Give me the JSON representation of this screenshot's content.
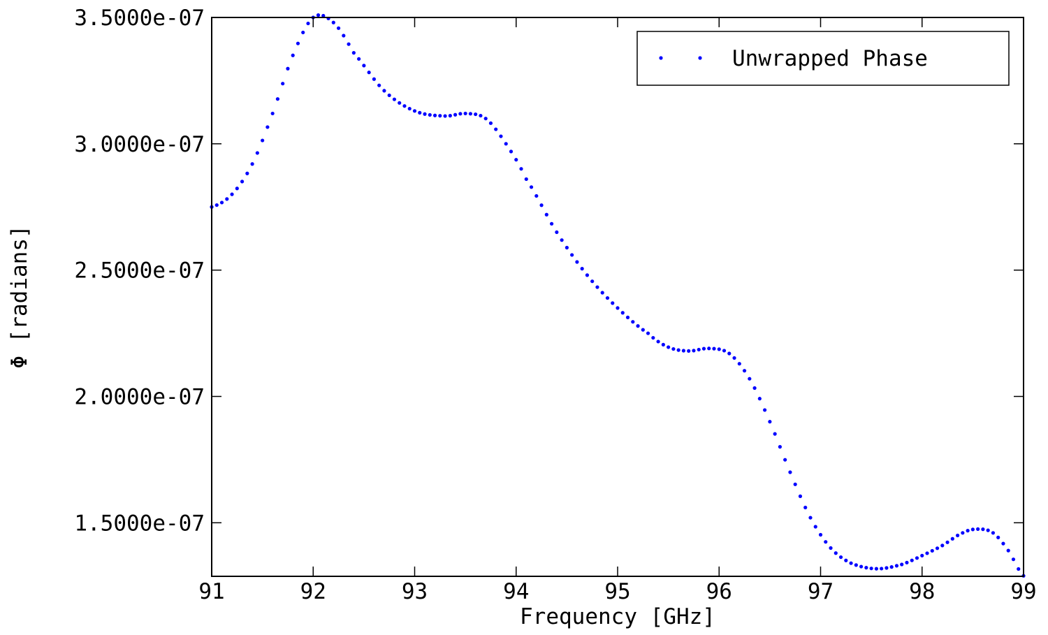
{
  "chart_data": {
    "type": "scatter",
    "title": "",
    "xlabel": "Frequency [GHz]",
    "ylabel": "Φ [radians]",
    "xlim": [
      91,
      99
    ],
    "ylim": [
      1.288e-07,
      3.5e-07
    ],
    "xticks": [
      91,
      92,
      93,
      94,
      95,
      96,
      97,
      98,
      99
    ],
    "xtick_labels": [
      "91",
      "92",
      "93",
      "94",
      "95",
      "96",
      "97",
      "98",
      "99"
    ],
    "yticks": [
      1.5e-07,
      2e-07,
      2.5e-07,
      3e-07,
      3.5e-07
    ],
    "ytick_labels": [
      "1.5000e-07",
      "2.0000e-07",
      "2.5000e-07",
      "3.0000e-07",
      "3.5000e-07"
    ],
    "grid": false,
    "legend_position": "top-right",
    "series": [
      {
        "name": "Unwrapped Phase",
        "color": "#0000ff",
        "marker": "dot",
        "n_points": 161,
        "key_points": [
          [
            91.0,
            2.75e-07
          ],
          [
            91.2,
            2.8e-07
          ],
          [
            91.4,
            2.92e-07
          ],
          [
            91.6,
            3.12e-07
          ],
          [
            91.8,
            3.35e-07
          ],
          [
            92.0,
            3.5e-07
          ],
          [
            92.2,
            3.48e-07
          ],
          [
            92.4,
            3.36e-07
          ],
          [
            92.7,
            3.21e-07
          ],
          [
            93.0,
            3.13e-07
          ],
          [
            93.3,
            3.11e-07
          ],
          [
            93.5,
            3.12e-07
          ],
          [
            93.7,
            3.1e-07
          ],
          [
            93.9,
            3e-07
          ],
          [
            94.1,
            2.86e-07
          ],
          [
            94.4,
            2.65e-07
          ],
          [
            94.7,
            2.48e-07
          ],
          [
            95.0,
            2.35e-07
          ],
          [
            95.3,
            2.25e-07
          ],
          [
            95.5,
            2.195e-07
          ],
          [
            95.7,
            2.18e-07
          ],
          [
            95.9,
            2.19e-07
          ],
          [
            96.1,
            2.17e-07
          ],
          [
            96.3,
            2.07e-07
          ],
          [
            96.5,
            1.9e-07
          ],
          [
            96.7,
            1.7e-07
          ],
          [
            96.9,
            1.52e-07
          ],
          [
            97.1,
            1.4e-07
          ],
          [
            97.3,
            1.34e-07
          ],
          [
            97.55,
            1.318e-07
          ],
          [
            97.8,
            1.335e-07
          ],
          [
            98.0,
            1.37e-07
          ],
          [
            98.2,
            1.41e-07
          ],
          [
            98.4,
            1.46e-07
          ],
          [
            98.55,
            1.475e-07
          ],
          [
            98.7,
            1.46e-07
          ],
          [
            98.85,
            1.39e-07
          ],
          [
            99.0,
            1.29e-07
          ]
        ]
      }
    ]
  }
}
